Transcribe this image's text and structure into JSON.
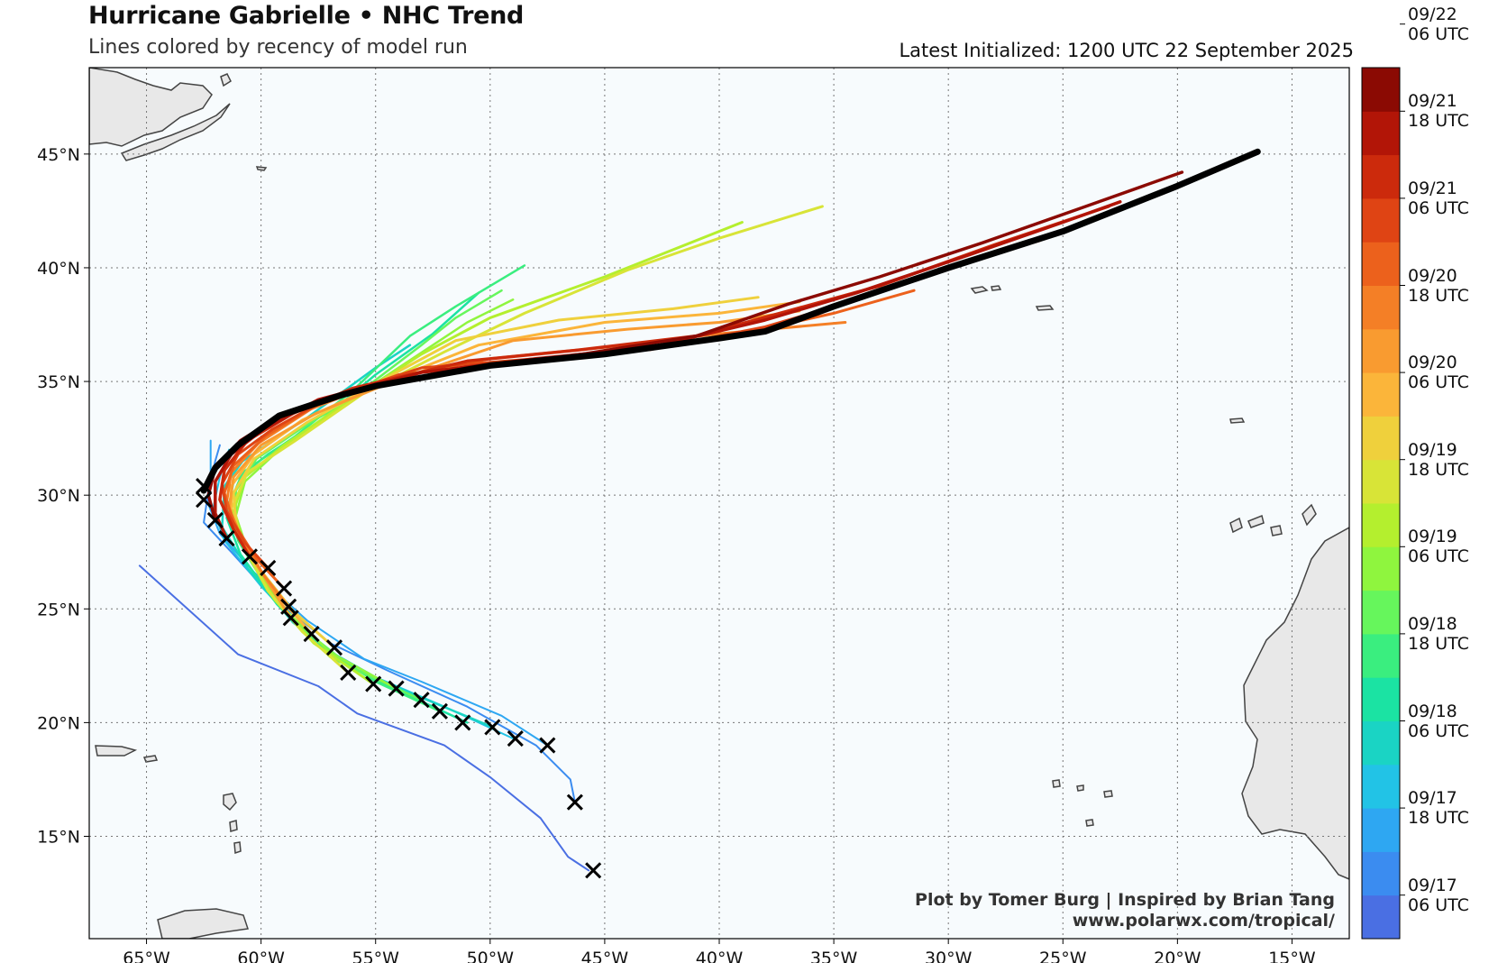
{
  "header": {
    "title": "Hurricane Gabrielle • NHC Trend",
    "subtitle": "Lines colored by recency of model run",
    "latest": "Latest Initialized: 1200 UTC 22 September 2025"
  },
  "credits": {
    "line1": "Plot by Tomer Burg | Inspired by Brian Tang",
    "line2": "www.polarwx.com/tropical/"
  },
  "axes": {
    "lon_range": [
      -67.5,
      -12.5
    ],
    "lat_range": [
      10.5,
      48.8
    ],
    "x_ticks": [
      {
        "lon": -65,
        "label": "65°W"
      },
      {
        "lon": -60,
        "label": "60°W"
      },
      {
        "lon": -55,
        "label": "55°W"
      },
      {
        "lon": -50,
        "label": "50°W"
      },
      {
        "lon": -45,
        "label": "45°W"
      },
      {
        "lon": -40,
        "label": "40°W"
      },
      {
        "lon": -35,
        "label": "35°W"
      },
      {
        "lon": -30,
        "label": "30°W"
      },
      {
        "lon": -25,
        "label": "25°W"
      },
      {
        "lon": -20,
        "label": "20°W"
      },
      {
        "lon": -15,
        "label": "15°W"
      }
    ],
    "y_ticks": [
      {
        "lat": 15,
        "label": "15°N"
      },
      {
        "lat": 20,
        "label": "20°N"
      },
      {
        "lat": 25,
        "label": "25°N"
      },
      {
        "lat": 30,
        "label": "30°N"
      },
      {
        "lat": 35,
        "label": "35°N"
      },
      {
        "lat": 40,
        "label": "40°N"
      },
      {
        "lat": 45,
        "label": "45°N"
      }
    ],
    "grid": "dotted"
  },
  "colorbar": {
    "colors": [
      "#4a6fe3",
      "#3b8cf0",
      "#2ea7f2",
      "#22c3e6",
      "#1ad4c4",
      "#1be3a3",
      "#3aee7f",
      "#66f65c",
      "#8ff53e",
      "#b4ef2e",
      "#d8e437",
      "#efd03c",
      "#fbb53a",
      "#f99b30",
      "#f47f26",
      "#ec611c",
      "#df4414",
      "#cc2a0c",
      "#b21507",
      "#8b0a03"
    ],
    "labels": [
      {
        "line1": "09/17",
        "line2": "06 UTC"
      },
      {
        "line1": "09/17",
        "line2": "18 UTC"
      },
      {
        "line1": "09/18",
        "line2": "06 UTC"
      },
      {
        "line1": "09/18",
        "line2": "18 UTC"
      },
      {
        "line1": "09/19",
        "line2": "06 UTC"
      },
      {
        "line1": "09/19",
        "line2": "18 UTC"
      },
      {
        "line1": "09/20",
        "line2": "06 UTC"
      },
      {
        "line1": "09/20",
        "line2": "18 UTC"
      },
      {
        "line1": "09/21",
        "line2": "06 UTC"
      },
      {
        "line1": "09/21",
        "line2": "18 UTC"
      },
      {
        "line1": "09/22",
        "line2": "06 UTC"
      }
    ]
  },
  "colors": {
    "ocean": "#f7fbfd",
    "land": "#e8e8e8",
    "coast": "#444444",
    "latest_track": "#000000"
  },
  "latest_track": [
    [
      -62.5,
      30.2
    ],
    [
      -62.0,
      31.2
    ],
    [
      -61.0,
      32.2
    ],
    [
      -59.2,
      33.5
    ],
    [
      -56.5,
      34.4
    ],
    [
      -55.0,
      34.8
    ],
    [
      -50.0,
      35.7
    ],
    [
      -45.0,
      36.2
    ],
    [
      -40.0,
      36.9
    ],
    [
      -38.0,
      37.2
    ],
    [
      -35.0,
      38.3
    ],
    [
      -30.0,
      40.0
    ],
    [
      -25.0,
      41.6
    ],
    [
      -20.0,
      43.6
    ],
    [
      -16.5,
      45.1
    ]
  ],
  "storm_positions": [
    [
      -45.5,
      13.5
    ],
    [
      -46.3,
      16.5
    ],
    [
      -47.5,
      19.0
    ],
    [
      -48.9,
      19.3
    ],
    [
      -49.9,
      19.8
    ],
    [
      -51.2,
      20.0
    ],
    [
      -52.2,
      20.5
    ],
    [
      -53.0,
      21.0
    ],
    [
      -54.1,
      21.5
    ],
    [
      -55.1,
      21.7
    ],
    [
      -56.2,
      22.2
    ],
    [
      -56.8,
      23.3
    ],
    [
      -57.8,
      23.9
    ],
    [
      -58.7,
      24.6
    ],
    [
      -58.8,
      25.1
    ],
    [
      -59.0,
      25.9
    ],
    [
      -59.7,
      26.8
    ],
    [
      -60.5,
      27.3
    ],
    [
      -61.5,
      28.1
    ],
    [
      -62.0,
      28.9
    ],
    [
      -62.5,
      29.8
    ],
    [
      -62.5,
      30.4
    ]
  ],
  "tracks": [
    {
      "color": "#4a6fe3",
      "width": 2,
      "points": [
        [
          -65.3,
          26.9
        ],
        [
          -61,
          23
        ],
        [
          -57.5,
          21.6
        ],
        [
          -55.8,
          20.4
        ],
        [
          -52,
          19
        ],
        [
          -50,
          17.6
        ],
        [
          -47.8,
          15.8
        ],
        [
          -46.6,
          14.1
        ],
        [
          -45.7,
          13.5
        ]
      ]
    },
    {
      "color": "#3b8cf0",
      "width": 2,
      "points": [
        [
          -46.3,
          16.5
        ],
        [
          -46.5,
          17.5
        ],
        [
          -48,
          19
        ],
        [
          -51,
          20.7
        ],
        [
          -54.5,
          22.3
        ],
        [
          -57,
          23.5
        ],
        [
          -59.5,
          25.5
        ],
        [
          -61.3,
          27.5
        ],
        [
          -62.5,
          28.8
        ],
        [
          -62.3,
          30.2
        ],
        [
          -62.0,
          31.5
        ],
        [
          -61.8,
          32.2
        ]
      ]
    },
    {
      "color": "#2ea7f2",
      "width": 2,
      "points": [
        [
          -47.5,
          19.0
        ],
        [
          -49.5,
          20.3
        ],
        [
          -53,
          21.8
        ],
        [
          -55.5,
          22.8
        ],
        [
          -58,
          24.5
        ],
        [
          -60.3,
          26.6
        ],
        [
          -61.8,
          28.3
        ],
        [
          -62.3,
          29.6
        ],
        [
          -62.2,
          31.0
        ],
        [
          -62.2,
          32.4
        ]
      ]
    },
    {
      "color": "#22c3e6",
      "width": 2,
      "points": [
        [
          -49.0,
          19.3
        ],
        [
          -52,
          20.7
        ],
        [
          -55,
          22
        ],
        [
          -57.8,
          23.6
        ],
        [
          -60,
          26
        ],
        [
          -61.6,
          28
        ],
        [
          -62.1,
          29.4
        ],
        [
          -61.8,
          30.8
        ],
        [
          -61.4,
          32.0
        ]
      ]
    },
    {
      "color": "#1ad4c4",
      "width": 2.5,
      "points": [
        [
          -49.9,
          19.8
        ],
        [
          -53,
          21.1
        ],
        [
          -56,
          22.4
        ],
        [
          -58.6,
          24.4
        ],
        [
          -60.6,
          26.8
        ],
        [
          -61.7,
          28.6
        ],
        [
          -61.6,
          30.4
        ],
        [
          -60.8,
          31.5
        ],
        [
          -58,
          33.4
        ],
        [
          -55,
          35.6
        ],
        [
          -53.5,
          36.6
        ]
      ]
    },
    {
      "color": "#1be3a3",
      "width": 2.5,
      "points": [
        [
          -51.0,
          20.0
        ],
        [
          -54,
          21.4
        ],
        [
          -57,
          22.9
        ],
        [
          -59.3,
          25.2
        ],
        [
          -60.9,
          27.4
        ],
        [
          -61.5,
          29
        ],
        [
          -61.2,
          30.6
        ],
        [
          -59.7,
          31.8
        ],
        [
          -57.5,
          33.2
        ],
        [
          -55,
          35.3
        ],
        [
          -52.5,
          37.1
        ],
        [
          -50.5,
          38.9
        ]
      ]
    },
    {
      "color": "#3aee7f",
      "width": 2.5,
      "points": [
        [
          -52.2,
          20.5
        ],
        [
          -55,
          21.8
        ],
        [
          -57.6,
          23.5
        ],
        [
          -59.6,
          25.7
        ],
        [
          -61,
          28
        ],
        [
          -61.4,
          29.6
        ],
        [
          -60.8,
          31.0
        ],
        [
          -58.5,
          32.6
        ],
        [
          -56,
          34.6
        ],
        [
          -53.5,
          37
        ],
        [
          -51.5,
          38.3
        ],
        [
          -48.5,
          40.1
        ]
      ]
    },
    {
      "color": "#66f65c",
      "width": 2.5,
      "points": [
        [
          -53.0,
          21.0
        ],
        [
          -56,
          22.4
        ],
        [
          -58.4,
          24.3
        ],
        [
          -60.1,
          26.5
        ],
        [
          -61.1,
          28.6
        ],
        [
          -61.1,
          30.2
        ],
        [
          -60.2,
          31.6
        ],
        [
          -58,
          33.1
        ],
        [
          -56,
          34.3
        ],
        [
          -53,
          36.6
        ],
        [
          -51.5,
          37.8
        ],
        [
          -49.5,
          39.0
        ]
      ]
    },
    {
      "color": "#8ff53e",
      "width": 2.5,
      "points": [
        [
          -54.1,
          21.5
        ],
        [
          -57,
          23.1
        ],
        [
          -59,
          25
        ],
        [
          -60.5,
          27.3
        ],
        [
          -61.1,
          29.1
        ],
        [
          -60.7,
          30.6
        ],
        [
          -59.2,
          32.0
        ],
        [
          -57,
          33.6
        ],
        [
          -54,
          35.6
        ],
        [
          -51,
          37.6
        ],
        [
          -49,
          38.6
        ]
      ]
    },
    {
      "color": "#b4ef2e",
      "width": 3,
      "points": [
        [
          -55.1,
          21.7
        ],
        [
          -57.7,
          23.5
        ],
        [
          -59.4,
          25.4
        ],
        [
          -60.7,
          27.6
        ],
        [
          -61.2,
          29.3
        ],
        [
          -60.7,
          30.8
        ],
        [
          -59.0,
          32.2
        ],
        [
          -56.5,
          33.9
        ],
        [
          -53,
          36.2
        ],
        [
          -50,
          37.8
        ],
        [
          -45,
          39.6
        ],
        [
          -39,
          42.0
        ]
      ]
    },
    {
      "color": "#d8e437",
      "width": 3,
      "points": [
        [
          -56.2,
          22.2
        ],
        [
          -58.2,
          24.0
        ],
        [
          -59.7,
          25.8
        ],
        [
          -60.9,
          28
        ],
        [
          -61.2,
          29.6
        ],
        [
          -60.6,
          31.0
        ],
        [
          -58.5,
          32.4
        ],
        [
          -55.5,
          34.5
        ],
        [
          -52,
          36.3
        ],
        [
          -48.5,
          38.0
        ],
        [
          -44,
          39.9
        ],
        [
          -40,
          41.3
        ],
        [
          -35.5,
          42.7
        ]
      ]
    },
    {
      "color": "#efd03c",
      "width": 3,
      "points": [
        [
          -56.8,
          23.3
        ],
        [
          -58.6,
          24.9
        ],
        [
          -60.1,
          26.8
        ],
        [
          -61.1,
          28.6
        ],
        [
          -61.2,
          30.1
        ],
        [
          -60.3,
          31.6
        ],
        [
          -58,
          33.2
        ],
        [
          -55,
          34.9
        ],
        [
          -51.5,
          36.8
        ],
        [
          -47,
          37.7
        ],
        [
          -42,
          38.2
        ],
        [
          -38.3,
          38.7
        ]
      ]
    },
    {
      "color": "#fbb53a",
      "width": 3,
      "points": [
        [
          -57.8,
          23.9
        ],
        [
          -59.1,
          25.4
        ],
        [
          -60.4,
          27.2
        ],
        [
          -61.3,
          29.0
        ],
        [
          -61.3,
          30.4
        ],
        [
          -60.3,
          31.8
        ],
        [
          -58.2,
          33.3
        ],
        [
          -55,
          34.8
        ],
        [
          -50.5,
          36.6
        ],
        [
          -45,
          37.6
        ],
        [
          -40,
          38.0
        ],
        [
          -36.5,
          38.5
        ]
      ]
    },
    {
      "color": "#f99b30",
      "width": 3,
      "points": [
        [
          -58.7,
          24.6
        ],
        [
          -59.6,
          26
        ],
        [
          -60.7,
          27.8
        ],
        [
          -61.4,
          29.4
        ],
        [
          -61.2,
          30.8
        ],
        [
          -60.0,
          32.2
        ],
        [
          -57.6,
          33.6
        ],
        [
          -54,
          35.1
        ],
        [
          -49,
          36.8
        ],
        [
          -44,
          37.3
        ],
        [
          -40,
          37.6
        ],
        [
          -36.5,
          38.1
        ]
      ]
    },
    {
      "color": "#f47f26",
      "width": 3,
      "points": [
        [
          -58.8,
          25.1
        ],
        [
          -59.9,
          26.5
        ],
        [
          -60.9,
          28.2
        ],
        [
          -61.5,
          29.7
        ],
        [
          -61.3,
          31.0
        ],
        [
          -60.1,
          32.3
        ],
        [
          -57.8,
          33.8
        ],
        [
          -54.5,
          35.1
        ],
        [
          -50,
          36.0
        ],
        [
          -45,
          36.5
        ],
        [
          -40,
          37.1
        ],
        [
          -34.5,
          37.6
        ]
      ]
    },
    {
      "color": "#ec611c",
      "width": 3,
      "points": [
        [
          -59.0,
          25.9
        ],
        [
          -60.2,
          27.2
        ],
        [
          -61.2,
          28.8
        ],
        [
          -61.6,
          30.1
        ],
        [
          -61.2,
          31.3
        ],
        [
          -59.8,
          32.6
        ],
        [
          -57.5,
          34.0
        ],
        [
          -54,
          35.3
        ],
        [
          -49,
          35.8
        ],
        [
          -44,
          36.3
        ],
        [
          -39,
          37.1
        ],
        [
          -35,
          38.0
        ],
        [
          -31.5,
          39.0
        ]
      ]
    },
    {
      "color": "#df4414",
      "width": 3,
      "points": [
        [
          -59.7,
          26.8
        ],
        [
          -60.7,
          27.9
        ],
        [
          -61.5,
          29.3
        ],
        [
          -61.7,
          30.5
        ],
        [
          -61.0,
          31.8
        ],
        [
          -59.5,
          32.9
        ],
        [
          -57,
          34.3
        ],
        [
          -53,
          35.6
        ],
        [
          -48,
          36.0
        ],
        [
          -43,
          36.4
        ],
        [
          -38,
          37.4
        ],
        [
          -34,
          38.6
        ],
        [
          -30,
          40.0
        ],
        [
          -26,
          41.2
        ]
      ]
    },
    {
      "color": "#cc2a0c",
      "width": 3.5,
      "points": [
        [
          -60.5,
          27.3
        ],
        [
          -61.2,
          28.5
        ],
        [
          -61.8,
          29.8
        ],
        [
          -61.6,
          31.1
        ],
        [
          -60.6,
          32.4
        ],
        [
          -58.6,
          33.6
        ],
        [
          -56,
          34.7
        ],
        [
          -51,
          35.9
        ],
        [
          -46,
          36.4
        ],
        [
          -41,
          37.0
        ],
        [
          -37,
          38.1
        ],
        [
          -33,
          39.2
        ],
        [
          -28,
          41.0
        ],
        [
          -23,
          42.7
        ]
      ]
    },
    {
      "color": "#b21507",
      "width": 3.5,
      "points": [
        [
          -61.5,
          28.1
        ],
        [
          -62.0,
          29.2
        ],
        [
          -62.0,
          30.6
        ],
        [
          -61.3,
          31.8
        ],
        [
          -59.9,
          32.9
        ],
        [
          -57.5,
          34.2
        ],
        [
          -53,
          35.4
        ],
        [
          -48,
          36.0
        ],
        [
          -43,
          36.5
        ],
        [
          -38,
          37.7
        ],
        [
          -34,
          38.9
        ],
        [
          -29,
          40.6
        ],
        [
          -25,
          42.0
        ],
        [
          -22.5,
          42.9
        ]
      ]
    },
    {
      "color": "#8b0a03",
      "width": 3.5,
      "points": [
        [
          -62.0,
          28.9
        ],
        [
          -62.3,
          30.0
        ],
        [
          -62.0,
          31.2
        ],
        [
          -60.9,
          32.4
        ],
        [
          -59.0,
          33.6
        ],
        [
          -56,
          34.6
        ],
        [
          -51,
          35.6
        ],
        [
          -46,
          36.2
        ],
        [
          -41,
          37.0
        ],
        [
          -37,
          38.4
        ],
        [
          -33,
          39.6
        ],
        [
          -28.5,
          41.1
        ],
        [
          -24,
          42.7
        ],
        [
          -19.8,
          44.2
        ]
      ]
    }
  ]
}
